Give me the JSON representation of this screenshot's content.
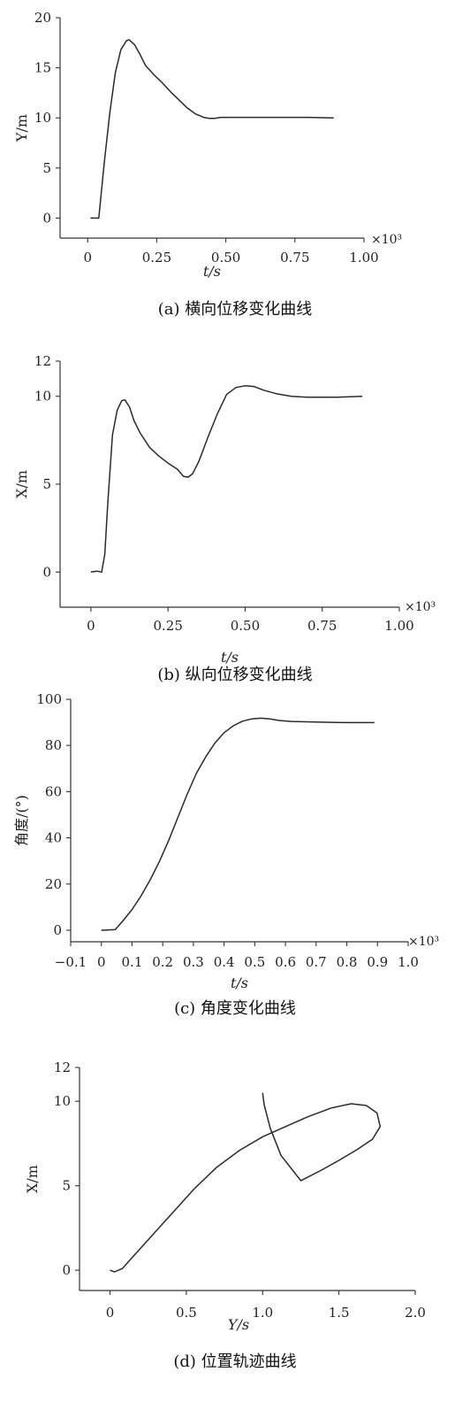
{
  "chart_data": [
    {
      "id": "a",
      "type": "line",
      "caption": "(a) 横向位移变化曲线",
      "xlabel": "t/s",
      "ylabel": "Y/m",
      "x_multiplier": "×10³",
      "xlim": [
        -0.1,
        1.0
      ],
      "ylim": [
        -2,
        20
      ],
      "x_ticks": [
        0,
        0.25,
        0.5,
        0.75,
        1.0
      ],
      "x_tick_labels": [
        "0",
        "0.25",
        "0.50",
        "0.75",
        "1.00"
      ],
      "y_ticks": [
        0,
        5,
        10,
        15,
        20
      ],
      "y_tick_labels": [
        "0",
        "5",
        "10",
        "15",
        "20"
      ],
      "series": [
        {
          "x": [
            0.01,
            0.04,
            0.06,
            0.08,
            0.1,
            0.12,
            0.14,
            0.15,
            0.17,
            0.19,
            0.21,
            0.24,
            0.27,
            0.3,
            0.33,
            0.36,
            0.39,
            0.42,
            0.44,
            0.46,
            0.48,
            0.52,
            0.6,
            0.7,
            0.8,
            0.89
          ],
          "y": [
            0,
            0,
            5.5,
            10.5,
            14.5,
            16.8,
            17.7,
            17.8,
            17.3,
            16.3,
            15.2,
            14.3,
            13.5,
            12.6,
            11.8,
            11.0,
            10.4,
            10.05,
            9.95,
            9.95,
            10.05,
            10.05,
            10.05,
            10.05,
            10.05,
            10.0
          ]
        }
      ]
    },
    {
      "id": "b",
      "type": "line",
      "caption": "(b) 纵向位移变化曲线",
      "xlabel": "t/s",
      "ylabel": "X/m",
      "x_multiplier": "×10³",
      "xlim": [
        -0.1,
        1.0
      ],
      "ylim": [
        -2,
        12
      ],
      "x_ticks": [
        0,
        0.25,
        0.5,
        0.75,
        1.0
      ],
      "x_tick_labels": [
        "0",
        "0.25",
        "0.50",
        "0.75",
        "1.00"
      ],
      "y_ticks": [
        0,
        5,
        10,
        12
      ],
      "y_tick_labels": [
        "0",
        "5",
        "10",
        "12"
      ],
      "series": [
        {
          "x": [
            0.0,
            0.02,
            0.035,
            0.045,
            0.055,
            0.07,
            0.085,
            0.1,
            0.11,
            0.125,
            0.14,
            0.16,
            0.19,
            0.22,
            0.25,
            0.28,
            0.3,
            0.315,
            0.33,
            0.35,
            0.38,
            0.41,
            0.44,
            0.47,
            0.5,
            0.53,
            0.56,
            0.6,
            0.65,
            0.7,
            0.75,
            0.8,
            0.85,
            0.88
          ],
          "y": [
            0,
            0.05,
            0.0,
            1.0,
            4.0,
            7.8,
            9.2,
            9.75,
            9.8,
            9.4,
            8.6,
            7.9,
            7.1,
            6.6,
            6.2,
            5.85,
            5.45,
            5.4,
            5.6,
            6.3,
            7.7,
            9.0,
            10.1,
            10.5,
            10.6,
            10.55,
            10.35,
            10.15,
            10.0,
            9.95,
            9.95,
            9.95,
            9.98,
            10.0
          ]
        }
      ]
    },
    {
      "id": "c",
      "type": "line",
      "caption": "(c) 角度变化曲线",
      "xlabel": "t/s",
      "ylabel": "角度/(°)",
      "x_multiplier": "×10³",
      "xlim": [
        -0.1,
        1.0
      ],
      "ylim": [
        -5,
        100
      ],
      "x_ticks": [
        -0.1,
        0,
        0.1,
        0.2,
        0.3,
        0.4,
        0.5,
        0.6,
        0.7,
        0.8,
        0.9,
        1.0
      ],
      "x_tick_labels": [
        "−0.1",
        "0",
        "0.1",
        "0.2",
        "0.3",
        "0.4",
        "0.5",
        "0.6",
        "0.7",
        "0.8",
        "0.9",
        "1.0"
      ],
      "y_ticks": [
        0,
        20,
        40,
        60,
        80,
        100
      ],
      "y_tick_labels": [
        "0",
        "20",
        "40",
        "60",
        "80",
        "100"
      ],
      "series": [
        {
          "x": [
            0.0,
            0.045,
            0.07,
            0.1,
            0.13,
            0.16,
            0.19,
            0.22,
            0.25,
            0.28,
            0.31,
            0.34,
            0.37,
            0.4,
            0.43,
            0.46,
            0.49,
            0.52,
            0.55,
            0.58,
            0.62,
            0.7,
            0.8,
            0.89
          ],
          "y": [
            0,
            0.3,
            4,
            9,
            15,
            22,
            30,
            39,
            49,
            59,
            68,
            75,
            81,
            85.5,
            88.5,
            90.5,
            91.5,
            91.8,
            91.5,
            90.8,
            90.4,
            90.1,
            89.9,
            89.9
          ]
        }
      ]
    },
    {
      "id": "d",
      "type": "line",
      "caption": "(d) 位置轨迹曲线",
      "xlabel": "Y/s",
      "ylabel": "X/m",
      "xlim": [
        -0.2,
        2.0
      ],
      "ylim": [
        -1.2,
        12
      ],
      "x_ticks": [
        0,
        0.5,
        1.0,
        1.5,
        2.0
      ],
      "x_tick_labels": [
        "0",
        "0.5",
        "1.0",
        "1.5",
        "2.0"
      ],
      "y_ticks": [
        0,
        5,
        10,
        12
      ],
      "y_tick_labels": [
        "0",
        "5",
        "10",
        "12"
      ],
      "series": [
        {
          "x": [
            0.0,
            0.03,
            0.08,
            0.15,
            0.25,
            0.4,
            0.55,
            0.7,
            0.85,
            1.0,
            1.15,
            1.3,
            1.45,
            1.58,
            1.68,
            1.75,
            1.77,
            1.72,
            1.62,
            1.5,
            1.38,
            1.25,
            1.12,
            1.05,
            1.01,
            1.0
          ],
          "y": [
            0,
            -0.1,
            0.1,
            0.8,
            1.8,
            3.3,
            4.8,
            6.1,
            7.1,
            7.9,
            8.5,
            9.1,
            9.6,
            9.85,
            9.75,
            9.3,
            8.5,
            7.75,
            7.15,
            6.5,
            5.9,
            5.3,
            6.8,
            8.4,
            9.8,
            10.5
          ]
        }
      ]
    }
  ]
}
